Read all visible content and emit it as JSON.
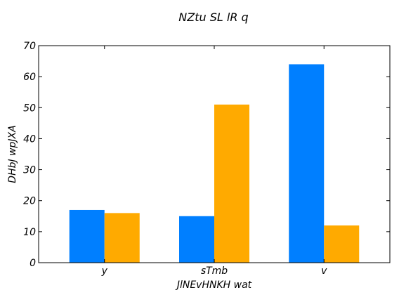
{
  "chart_data": {
    "type": "bar",
    "title": "NZtu SL lR q",
    "xlabel": "JlNEvHNKH wat",
    "ylabel": "DHbJ wpJXA",
    "categories": [
      "y",
      "sTmb",
      "v"
    ],
    "series": [
      {
        "values": [
          17,
          15,
          64
        ],
        "color": "#007fff"
      },
      {
        "values": [
          16,
          51,
          12
        ],
        "color": "#ffaa00"
      }
    ],
    "ylim": [
      0,
      70
    ],
    "yticks": [
      0,
      10,
      20,
      30,
      40,
      50,
      60,
      70
    ],
    "grid": false,
    "legend": "none"
  }
}
